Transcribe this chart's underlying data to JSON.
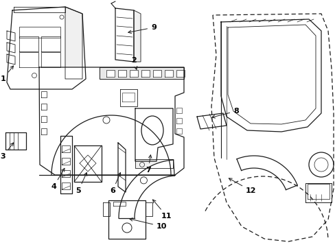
{
  "background_color": "#ffffff",
  "line_color": "#1a1a1a",
  "label_color": "#000000",
  "figsize": [
    4.89,
    3.6
  ],
  "dpi": 100
}
